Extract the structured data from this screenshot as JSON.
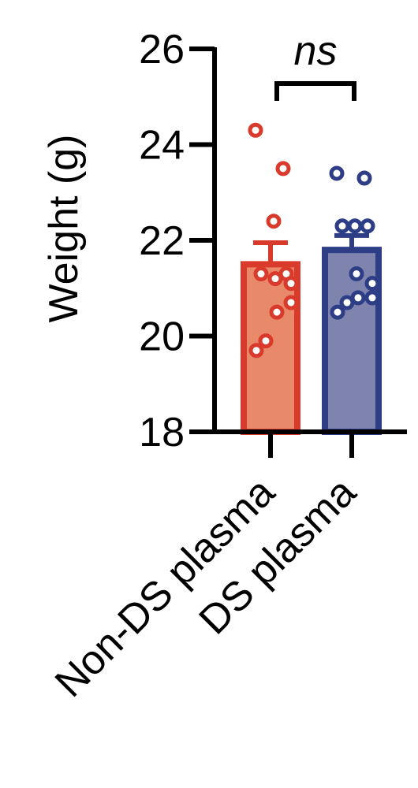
{
  "chart_data": {
    "type": "bar",
    "ylabel": "Weight (g)",
    "ylim": [
      18,
      26
    ],
    "yticks": [
      "18",
      "20",
      "22",
      "24",
      "26"
    ],
    "categories": [
      "Non-DS plasma",
      "DS plasma"
    ],
    "colors": {
      "Non-DS plasma": {
        "fill": "#E8896A",
        "edge": "#D93A2B"
      },
      "DS plasma": {
        "fill": "#7F84AE",
        "edge": "#2D3E86"
      }
    },
    "means": [
      21.5,
      21.8
    ],
    "errors": [
      0.45,
      0.3
    ],
    "points": [
      [
        24.3,
        23.5,
        22.4,
        21.3,
        21.3,
        21.2,
        21.1,
        20.7,
        20.5,
        19.9,
        19.7
      ],
      [
        23.4,
        23.3,
        22.3,
        22.3,
        22.3,
        21.3,
        21.1,
        20.8,
        20.8,
        20.7,
        20.5
      ]
    ],
    "significance": {
      "label": "ns",
      "between": [
        "Non-DS plasma",
        "DS plasma"
      ]
    }
  }
}
